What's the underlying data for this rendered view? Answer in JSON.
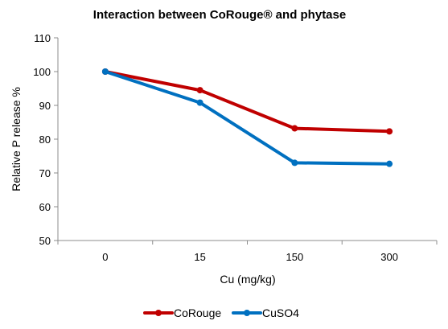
{
  "chart_data": {
    "type": "line",
    "title": "Interaction between CoRouge® and phytase",
    "xlabel": "Cu (mg/kg)",
    "ylabel": "Relative P release %",
    "categories": [
      "0",
      "15",
      "150",
      "300"
    ],
    "ylim": [
      50,
      110
    ],
    "yticks": [
      50,
      60,
      70,
      80,
      90,
      100,
      110
    ],
    "grid": false,
    "legend": "bottom",
    "series": [
      {
        "name": "CoRouge",
        "color": "#c00000",
        "values": [
          100,
          94.5,
          83.2,
          82.3
        ]
      },
      {
        "name": "CuSO4",
        "color": "#0070c0",
        "values": [
          100,
          90.8,
          73,
          72.7
        ]
      }
    ]
  }
}
